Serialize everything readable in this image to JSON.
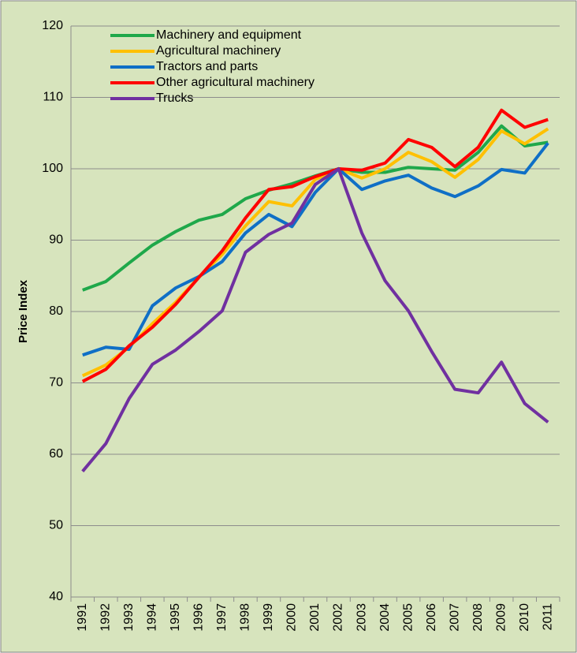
{
  "chart_data": {
    "type": "line",
    "y_label": "Price Index",
    "categories": [
      "1991",
      "1992",
      "1993",
      "1994",
      "1995",
      "1996",
      "1997",
      "1998",
      "1999",
      "2000",
      "2001",
      "2002",
      "2003",
      "2004",
      "2005",
      "2006",
      "2007",
      "2008",
      "2009",
      "2010",
      "2011"
    ],
    "series": [
      {
        "name": "Machinery and equipment",
        "color": "#1fa84a",
        "values": [
          83,
          84.2,
          86.8,
          89.3,
          91.2,
          92.8,
          93.6,
          95.8,
          97,
          97.9,
          99,
          100,
          99.5,
          99.5,
          100.2,
          100,
          99.8,
          102.3,
          106,
          103.2,
          103.7
        ]
      },
      {
        "name": "Agricultural machinery",
        "color": "#ffc000",
        "values": [
          71,
          72.5,
          75,
          78.3,
          81.3,
          84.8,
          88,
          92,
          95.4,
          94.8,
          98.5,
          100,
          98.7,
          100,
          102.3,
          101,
          98.8,
          101.3,
          105.3,
          103.5,
          105.6
        ]
      },
      {
        "name": "Tractors and parts",
        "color": "#0f6fc6",
        "values": [
          73.9,
          75,
          74.7,
          80.8,
          83.3,
          84.9,
          87,
          91,
          93.6,
          91.9,
          96.7,
          100,
          97.1,
          98.3,
          99.1,
          97.3,
          96.1,
          97.6,
          99.9,
          99.4,
          103.6
        ]
      },
      {
        "name": "Other agricultural machinery",
        "color": "#ff0000",
        "values": [
          70.2,
          71.9,
          75.2,
          77.8,
          81,
          84.8,
          88.5,
          93.1,
          97.1,
          97.5,
          98.9,
          100,
          99.8,
          100.8,
          104.1,
          103,
          100.3,
          103,
          108.2,
          105.8,
          106.9
        ]
      },
      {
        "name": "Trucks",
        "color": "#7030a0",
        "values": [
          57.6,
          61.5,
          67.8,
          72.6,
          74.6,
          77.2,
          80.1,
          88.3,
          90.8,
          92.4,
          97.8,
          100,
          91,
          84.3,
          80.1,
          74.4,
          69.1,
          68.6,
          72.9,
          67.1,
          64.5
        ]
      }
    ],
    "ylim": [
      40,
      120
    ],
    "yticks": [
      40,
      50,
      60,
      70,
      80,
      90,
      100,
      110,
      120
    ],
    "grid": true,
    "legend": "upper left"
  }
}
